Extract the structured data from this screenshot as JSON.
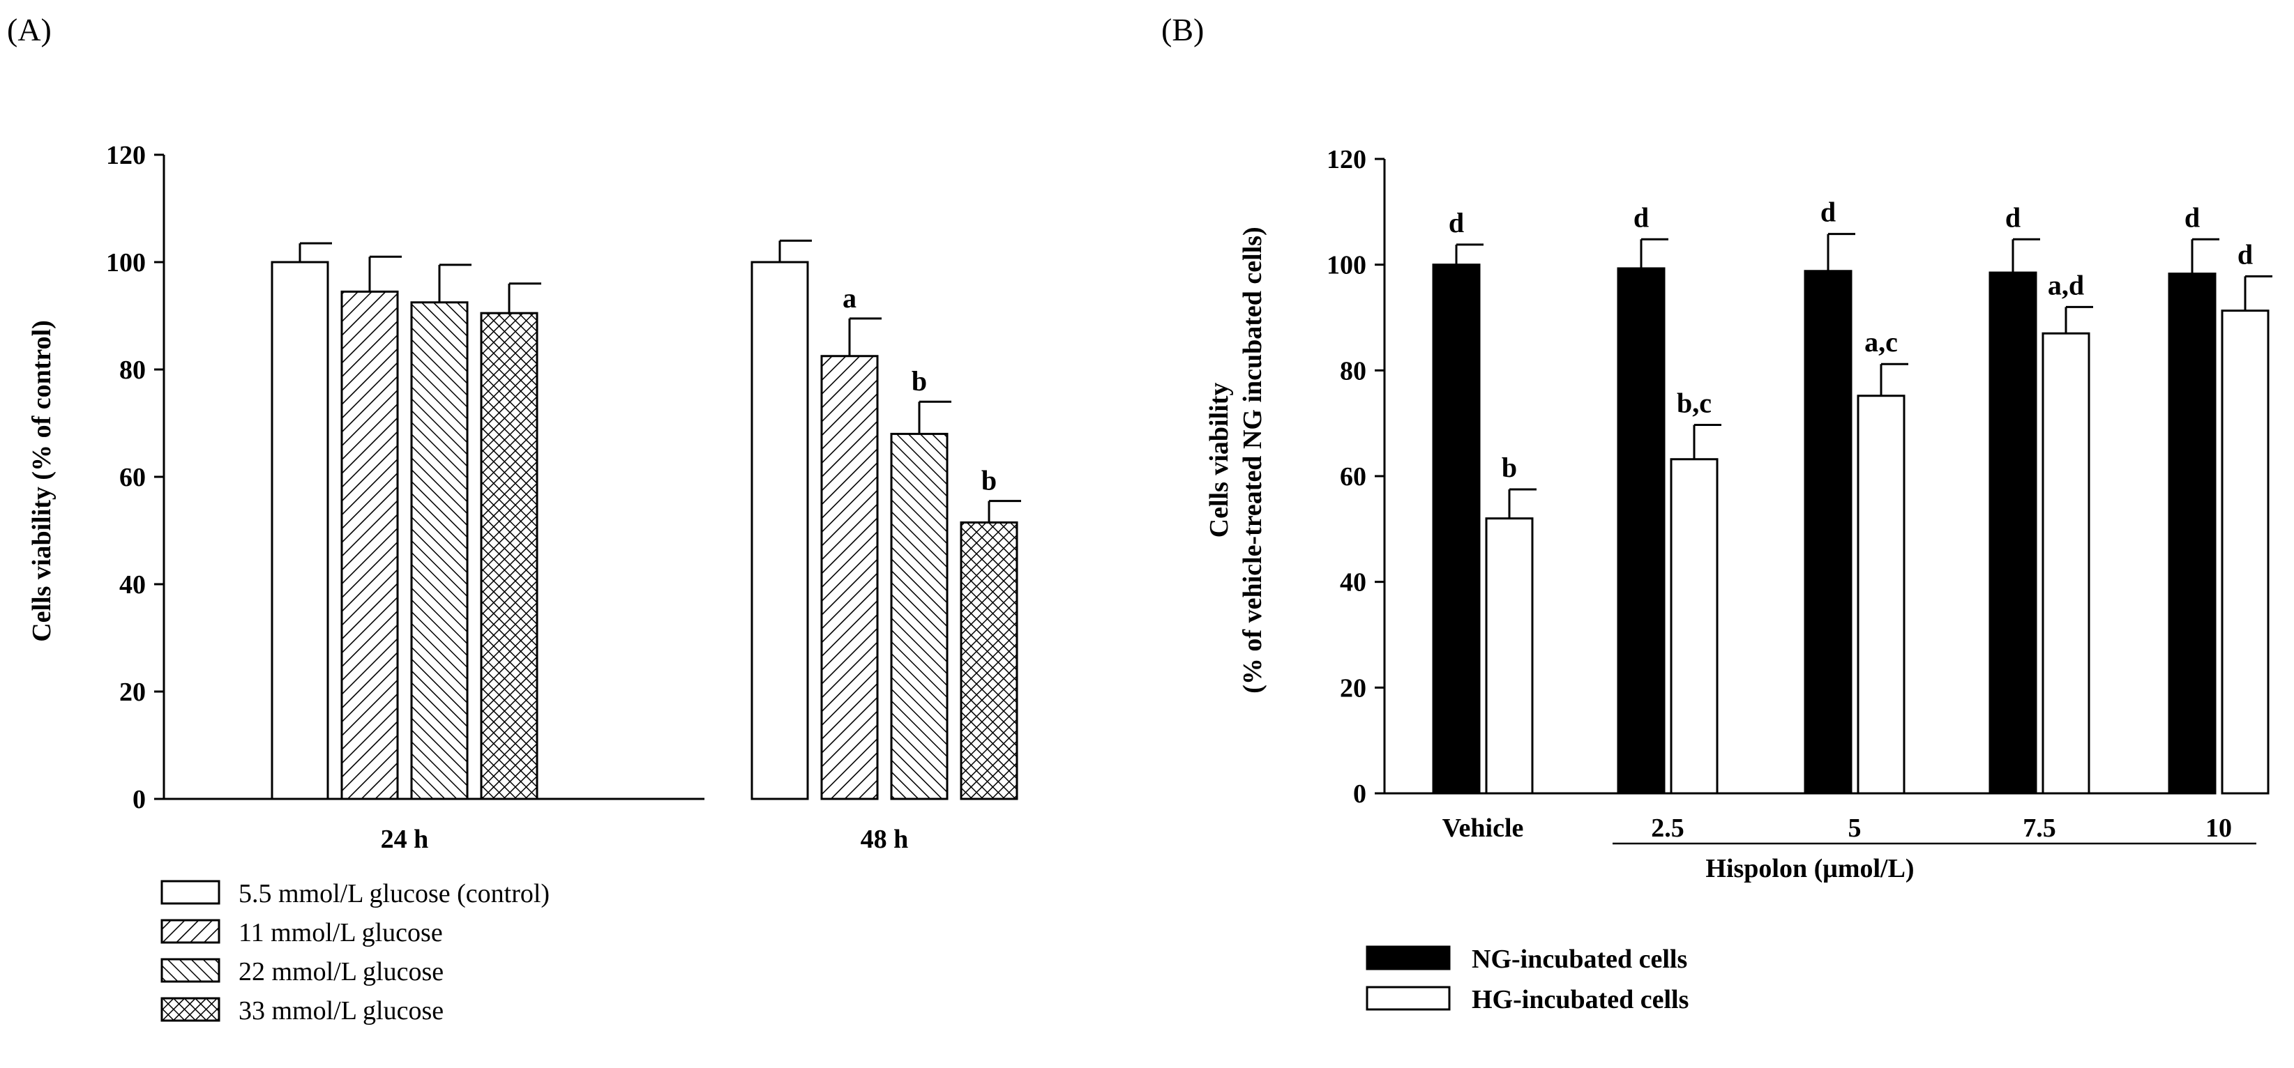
{
  "chart_data": [
    {
      "panel_label": "(A)",
      "type": "bar",
      "categories": [
        "24 h",
        "48 h"
      ],
      "ylabel": "Cells viability (% of control)",
      "xlabel": "",
      "ylim": [
        0,
        120
      ],
      "yticks": [
        "0",
        "20",
        "40",
        "60",
        "80",
        "100",
        "120"
      ],
      "series": [
        {
          "name": "5.5 mmol/L glucose (control)",
          "pattern": "none",
          "values": [
            100,
            100
          ],
          "errors": [
            3.5,
            4
          ],
          "labels": [
            "",
            ""
          ]
        },
        {
          "name": "11 mmol/L glucose",
          "pattern": "forward-hatch",
          "values": [
            94.5,
            82.5
          ],
          "errors": [
            6.5,
            7
          ],
          "labels": [
            "",
            "a"
          ]
        },
        {
          "name": "22 mmol/L glucose",
          "pattern": "back-hatch",
          "values": [
            92.5,
            68
          ],
          "errors": [
            7,
            6
          ],
          "labels": [
            "",
            "b"
          ]
        },
        {
          "name": "33 mmol/L glucose",
          "pattern": "crosshatch",
          "values": [
            90.5,
            51.5
          ],
          "errors": [
            5.5,
            4
          ],
          "labels": [
            "",
            "b"
          ]
        }
      ]
    },
    {
      "panel_label": "(B)",
      "type": "bar",
      "categories": [
        "Vehicle",
        "2.5",
        "5",
        "7.5",
        "10"
      ],
      "xlabel": "Hispolon (μmol/L)",
      "ylabel": "Cells viability",
      "ylabel2": "(% of vehicle-treated NG incubated cells)",
      "ylim": [
        0,
        120
      ],
      "yticks": [
        "0",
        "20",
        "40",
        "60",
        "80",
        "100",
        "120"
      ],
      "series": [
        {
          "name": "NG-incubated cells",
          "fill": "#000000",
          "values": [
            100,
            99.3,
            98.8,
            98.5,
            98.3
          ],
          "errors": [
            3.8,
            5.5,
            7,
            6.3,
            6.5
          ],
          "labels": [
            "d",
            "d",
            "d",
            "d",
            "d"
          ]
        },
        {
          "name": "HG-incubated cells",
          "fill": "#ffffff",
          "values": [
            52,
            63.2,
            75.2,
            87,
            91.3
          ],
          "errors": [
            5.5,
            6.5,
            6,
            5,
            6.5
          ],
          "labels": [
            "b",
            "b,c",
            "a,c",
            "a,d",
            "d"
          ]
        }
      ]
    }
  ]
}
